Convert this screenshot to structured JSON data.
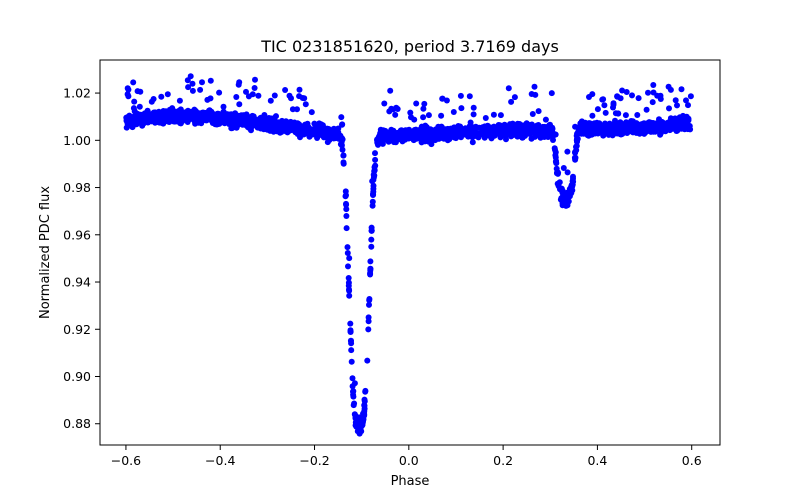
{
  "chart_data": {
    "type": "scatter",
    "title": "TIC 0231851620, period 3.7169 days",
    "xlabel": "Phase",
    "ylabel": "Normalized PDC flux",
    "xlim": [
      -0.655,
      0.66
    ],
    "ylim": [
      0.871,
      1.034
    ],
    "xticks": [
      -0.6,
      -0.4,
      -0.2,
      0.0,
      0.2,
      0.4,
      0.6
    ],
    "xtick_labels": [
      "−0.6",
      "−0.4",
      "−0.2",
      "0.0",
      "0.2",
      "0.4",
      "0.6"
    ],
    "yticks": [
      0.88,
      0.9,
      0.92,
      0.94,
      0.96,
      0.98,
      1.0,
      1.02
    ],
    "ytick_labels": [
      "0.88",
      "0.90",
      "0.92",
      "0.94",
      "0.96",
      "0.98",
      "1.00",
      "1.02"
    ],
    "grid": false,
    "marker_color": "#0000ff",
    "series": [
      {
        "name": "Normalized PDC flux",
        "x_range": [
          -0.6,
          0.6
        ],
        "baseline": 1.005,
        "primary_eclipse": {
          "center": -0.105,
          "min_flux": 0.879,
          "width": 0.028
        },
        "secondary_eclipse": {
          "center": 0.332,
          "min_flux": 0.972,
          "width": 0.022
        },
        "sample_points": [
          {
            "x": -0.6,
            "y": 1.006
          },
          {
            "x": -0.5,
            "y": 1.008
          },
          {
            "x": -0.4,
            "y": 1.01
          },
          {
            "x": -0.3,
            "y": 1.007
          },
          {
            "x": -0.2,
            "y": 1.004
          },
          {
            "x": -0.14,
            "y": 1.002
          },
          {
            "x": -0.125,
            "y": 0.96
          },
          {
            "x": -0.115,
            "y": 0.9
          },
          {
            "x": -0.105,
            "y": 0.879
          },
          {
            "x": -0.095,
            "y": 0.9
          },
          {
            "x": -0.085,
            "y": 0.96
          },
          {
            "x": -0.07,
            "y": 1.0
          },
          {
            "x": 0.0,
            "y": 1.006
          },
          {
            "x": 0.1,
            "y": 1.01
          },
          {
            "x": 0.2,
            "y": 1.007
          },
          {
            "x": 0.3,
            "y": 1.004
          },
          {
            "x": 0.315,
            "y": 0.99
          },
          {
            "x": 0.332,
            "y": 0.972
          },
          {
            "x": 0.35,
            "y": 0.99
          },
          {
            "x": 0.4,
            "y": 1.004
          },
          {
            "x": 0.5,
            "y": 1.007
          },
          {
            "x": 0.6,
            "y": 1.008
          }
        ]
      }
    ]
  }
}
